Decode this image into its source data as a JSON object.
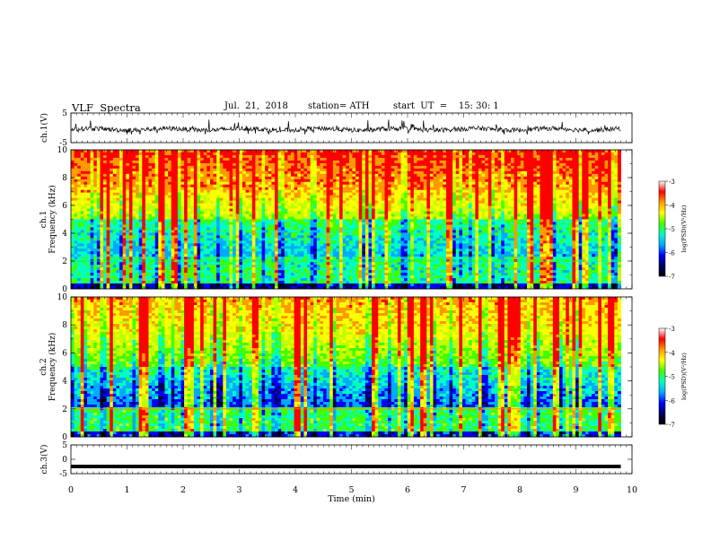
{
  "header": {
    "title": "VLF  Spectra",
    "date": "Jul.  21,  2018",
    "station": "station= ATH",
    "start": "start  UT  =    15: 30: 1"
  },
  "colors": {
    "spectrogram_scale": [
      "#000000",
      "#000060",
      "#0000ff",
      "#00aaff",
      "#00ffc0",
      "#40ff00",
      "#c0ff00",
      "#ffff00",
      "#ff9900",
      "#ff0000",
      "#ffffff"
    ],
    "waveform": "#000000",
    "axes": "#000000"
  },
  "chart_data": [
    {
      "type": "line",
      "ylabel": "ch.1(V)",
      "yticks": [
        "5",
        "-5"
      ],
      "ylim": [
        -5,
        5
      ],
      "description_values": {
        "baseline": -0.5,
        "amplitude_range": [
          -2,
          2.5
        ]
      },
      "x_range": [
        0,
        9.8
      ]
    },
    {
      "type": "heatmap",
      "ylabel": [
        "ch.1",
        "Frequency  (kHz)"
      ],
      "yticks": [
        "0",
        "2",
        "4",
        "6",
        "8",
        "10"
      ],
      "ylim": [
        0,
        10
      ],
      "colorbar": {
        "label": "log(PSD)(V²/Hz)",
        "ticks": [
          "-3",
          "-4",
          "-5",
          "-6",
          "-7"
        ],
        "range": [
          -7,
          -3
        ]
      },
      "x_range": [
        0,
        9.8
      ]
    },
    {
      "type": "heatmap",
      "ylabel": [
        "ch.2",
        "Frequency  (kHz)"
      ],
      "yticks": [
        "0",
        "2",
        "4",
        "6",
        "8",
        "10"
      ],
      "ylim": [
        0,
        10
      ],
      "colorbar": {
        "label": "log(PSD)(V²/Hz)",
        "ticks": [
          "-3",
          "-4",
          "-5",
          "-6",
          "-7"
        ],
        "range": [
          -7,
          -3
        ]
      },
      "x_range": [
        0,
        9.8
      ]
    },
    {
      "type": "line",
      "ylabel": "ch.3(V)",
      "yticks": [
        "5",
        "0",
        "-5"
      ],
      "ylim": [
        -5,
        5
      ],
      "description_values": {
        "baseline": -2.5
      },
      "x_range": [
        0,
        9.8
      ]
    }
  ],
  "xaxis": {
    "label": "Time  (min)",
    "ticks": [
      "0",
      "1",
      "2",
      "3",
      "4",
      "5",
      "6",
      "7",
      "8",
      "9",
      "10"
    ],
    "xlim": [
      0,
      10
    ]
  }
}
